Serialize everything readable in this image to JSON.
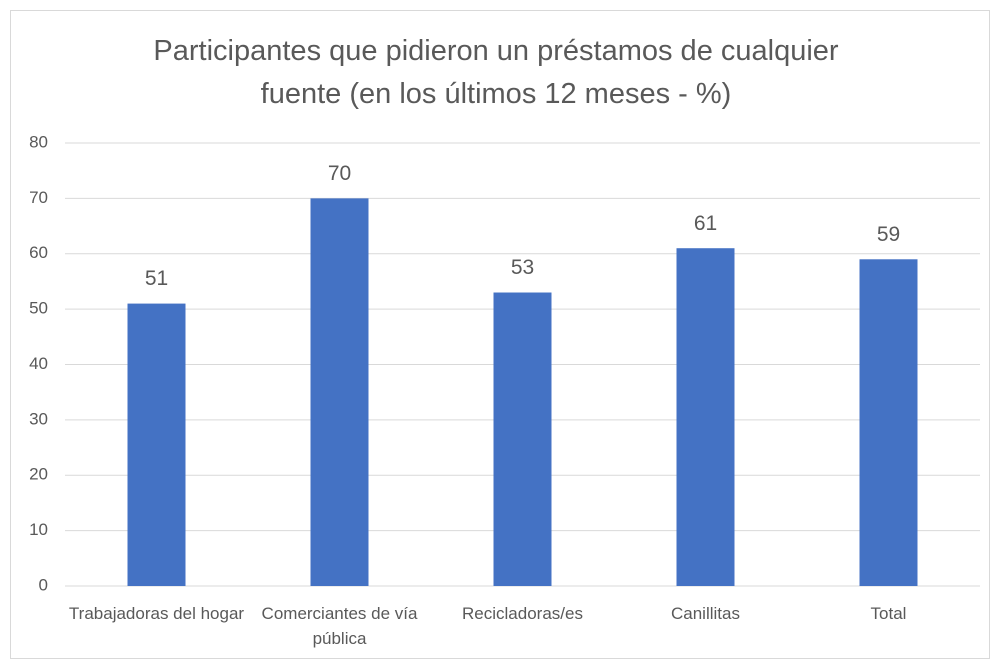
{
  "chart_data": {
    "type": "bar",
    "title": "Participantes que pidieron un préstamos de cualquier fuente (en los últimos 12 meses - %)",
    "categories": [
      "Trabajadoras del hogar",
      "Comerciantes de vía pública",
      "Recicladoras/es",
      "Canillitas",
      "Total"
    ],
    "values": [
      51,
      70,
      53,
      61,
      59
    ],
    "color": "#4472c4",
    "ylim": [
      0,
      80
    ],
    "yticks": [
      0,
      10,
      20,
      30,
      40,
      50,
      60,
      70,
      80
    ],
    "grid": true
  }
}
